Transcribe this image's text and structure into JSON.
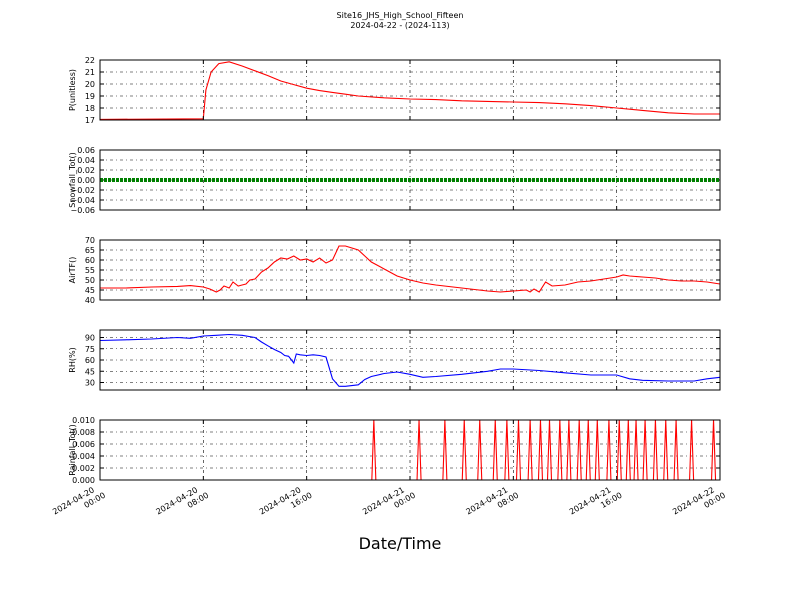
{
  "figure": {
    "title_line1": "Site16_JHS_High_School_Fifteen",
    "title_line2": "2024-04-22 - (2024-113)",
    "xlabel": "Date/Time"
  },
  "chart_data": [
    {
      "type": "line",
      "ylabel": "P(unitless)",
      "ylim": [
        17,
        22
      ],
      "yticks": [
        "17",
        "18",
        "19",
        "20",
        "21",
        "22"
      ],
      "color": "#ff0000",
      "grid": true,
      "x_hours": [
        0,
        8,
        8.2,
        8.6,
        9.2,
        10,
        11,
        12,
        13,
        14,
        15,
        16,
        17,
        18,
        19,
        20,
        22,
        24,
        26,
        28,
        30,
        32,
        34,
        36,
        38,
        40,
        42,
        44,
        46,
        48
      ],
      "values": [
        17.05,
        17.1,
        19.5,
        21.0,
        21.7,
        21.85,
        21.5,
        21.1,
        20.7,
        20.25,
        19.95,
        19.65,
        19.45,
        19.3,
        19.15,
        19.0,
        18.85,
        18.75,
        18.7,
        18.6,
        18.55,
        18.5,
        18.45,
        18.35,
        18.2,
        18.0,
        17.8,
        17.6,
        17.5,
        17.5
      ]
    },
    {
      "type": "line",
      "ylabel": "Snowfall_Tot()",
      "ylim": [
        -0.06,
        0.06
      ],
      "yticks": [
        "−0.06",
        "−0.04",
        "−0.02",
        "0.00",
        "0.02",
        "0.04",
        "0.06"
      ],
      "color": "#008000",
      "grid": true,
      "x_hours": [
        0,
        48
      ],
      "values": [
        0,
        0
      ]
    },
    {
      "type": "line",
      "ylabel": "AirTF()",
      "ylim": [
        40,
        70
      ],
      "yticks": [
        "40",
        "45",
        "50",
        "55",
        "60",
        "65",
        "70"
      ],
      "color": "#ff0000",
      "grid": true,
      "x_hours": [
        0,
        2,
        4,
        6,
        7,
        8,
        8.5,
        9,
        9.3,
        9.6,
        10,
        10.3,
        10.7,
        11,
        11.3,
        11.6,
        12,
        12.5,
        13,
        13.5,
        14,
        14.5,
        15,
        15.5,
        16,
        16.5,
        17,
        17.5,
        18,
        18.5,
        19,
        19.5,
        20,
        20.5,
        21,
        22,
        23,
        24,
        25,
        26,
        28,
        30,
        31,
        32,
        33,
        33.3,
        33.6,
        34,
        34.5,
        35,
        36,
        37,
        38,
        39,
        40,
        40.5,
        41,
        42,
        43,
        44,
        45,
        46,
        47,
        48
      ],
      "values": [
        46,
        46,
        46.5,
        46.8,
        47.2,
        46.5,
        45.5,
        44,
        45,
        47,
        46,
        49,
        47,
        47.5,
        48,
        50,
        50.5,
        54,
        56,
        59,
        61,
        60.5,
        62,
        60,
        60.5,
        59,
        61,
        58.5,
        60,
        67,
        67,
        66,
        65,
        62,
        59,
        55.5,
        52,
        50,
        48.5,
        47.5,
        46,
        44.5,
        44,
        44.5,
        45,
        44,
        45.5,
        44,
        49,
        47,
        47.5,
        49,
        49.5,
        50.5,
        51.5,
        52.5,
        52,
        51.5,
        51,
        50,
        49.5,
        49.5,
        49,
        48
      ]
    },
    {
      "type": "line",
      "ylabel": "RH(%)",
      "ylim": [
        20,
        100
      ],
      "yticks": [
        "30",
        "45",
        "60",
        "75",
        "90"
      ],
      "color": "#0000ff",
      "grid": true,
      "x_hours": [
        0,
        2,
        4,
        6,
        7,
        8,
        9,
        10,
        11,
        12,
        12.5,
        13,
        13.5,
        14,
        14.3,
        14.6,
        15,
        15.2,
        15.5,
        16,
        16.5,
        17,
        17.5,
        18,
        18.5,
        19,
        20,
        20.5,
        21,
        22,
        23,
        24,
        25,
        26,
        28,
        30,
        31,
        32,
        34,
        36,
        38,
        40,
        41,
        42,
        44,
        46,
        47,
        48
      ],
      "values": [
        86,
        87,
        88,
        90,
        89,
        92,
        93,
        94,
        93,
        90,
        84,
        79,
        74,
        70,
        66,
        65,
        56,
        68,
        67,
        66,
        67,
        66,
        64,
        35,
        25,
        25,
        27,
        34,
        38,
        42,
        44,
        41,
        37,
        38,
        41,
        45,
        48,
        48,
        46,
        43,
        40,
        40,
        35,
        33,
        32,
        32,
        35,
        37
      ]
    },
    {
      "type": "line",
      "ylabel": "Rainfall_Tot()",
      "ylim": [
        0,
        0.01
      ],
      "yticks": [
        "0.000",
        "0.002",
        "0.004",
        "0.006",
        "0.008",
        "0.010"
      ],
      "color": "#ff0000",
      "grid": true,
      "spikes_x_hours": [
        21.2,
        24.7,
        26.7,
        28.2,
        29.4,
        30.6,
        31.5,
        32.4,
        33.3,
        34.1,
        34.8,
        35.6,
        36.3,
        37.1,
        37.8,
        38.5,
        39.4,
        40.2,
        40.9,
        41.5,
        42.2,
        43.0,
        43.8,
        44.6,
        45.8,
        47.5
      ],
      "spike_value": 0.01
    }
  ],
  "x_axis": {
    "tick_labels": [
      [
        "2024-04-20",
        "00:00"
      ],
      [
        "2024-04-20",
        "08:00"
      ],
      [
        "2024-04-20",
        "16:00"
      ],
      [
        "2024-04-21",
        "00:00"
      ],
      [
        "2024-04-21",
        "08:00"
      ],
      [
        "2024-04-21",
        "16:00"
      ],
      [
        "2024-04-22",
        "00:00"
      ]
    ],
    "range_hours": [
      0,
      48
    ]
  }
}
